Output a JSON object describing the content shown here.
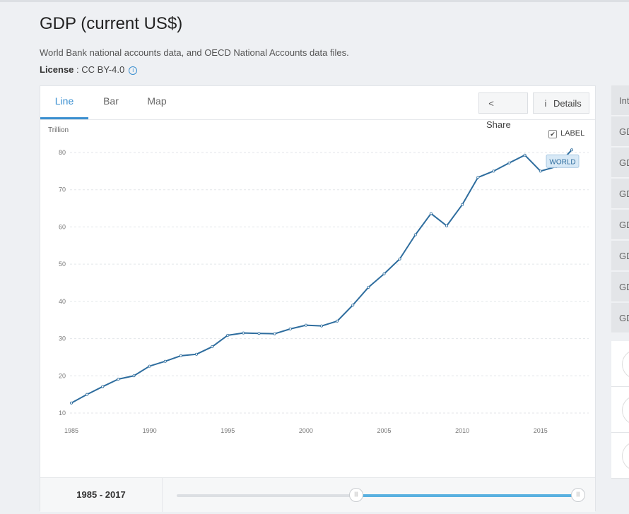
{
  "page": {
    "title": "GDP (current US$)",
    "source": "World Bank national accounts data, and OECD National Accounts data files.",
    "license_label": "License",
    "license_value": " : CC BY-4.0",
    "info_icon": "i"
  },
  "tabs": [
    {
      "label": "Line",
      "active": true
    },
    {
      "label": "Bar",
      "active": false
    },
    {
      "label": "Map",
      "active": false
    }
  ],
  "toolbar": {
    "share_label": "Share",
    "share_icon": "<",
    "details_label": "Details",
    "details_icon": "i"
  },
  "label_toggle": {
    "text": "LABEL",
    "checked": true,
    "mark": "✔"
  },
  "footer": {
    "range_label": "1985 - 2017",
    "handle_glyph": "|||"
  },
  "slider": {
    "min_year": 1960,
    "max_year": 2017,
    "start_year": 1985,
    "end_year": 2017
  },
  "colors": {
    "accent": "#3a8fd0",
    "line": "#2e6d9e",
    "slider_fill": "#59b0e0"
  },
  "sidebar": {
    "rows": [
      "Int",
      "GD",
      "GD",
      "GD",
      "GD",
      "GD",
      "GD",
      "GD"
    ],
    "cards": 3
  },
  "chart_data": {
    "type": "line",
    "ylabel": "Trillion",
    "ylim": [
      10,
      80
    ],
    "yticks": [
      10,
      20,
      30,
      40,
      50,
      60,
      70,
      80
    ],
    "xlim": [
      1985,
      2017
    ],
    "xticks": [
      1985,
      1990,
      1995,
      2000,
      2005,
      2010,
      2015
    ],
    "grid": true,
    "series": [
      {
        "name": "WORLD",
        "x": [
          1985,
          1986,
          1987,
          1988,
          1989,
          1990,
          1991,
          1992,
          1993,
          1994,
          1995,
          1996,
          1997,
          1998,
          1999,
          2000,
          2001,
          2002,
          2003,
          2004,
          2005,
          2006,
          2007,
          2008,
          2009,
          2010,
          2011,
          2012,
          2013,
          2014,
          2015,
          2016,
          2017
        ],
        "values": [
          12.7,
          15.0,
          17.1,
          19.1,
          20.0,
          22.6,
          23.9,
          25.4,
          25.8,
          27.8,
          30.9,
          31.5,
          31.4,
          31.3,
          32.6,
          33.6,
          33.4,
          34.7,
          39.0,
          43.8,
          47.4,
          51.4,
          57.9,
          63.6,
          60.3,
          66.0,
          73.3,
          75.0,
          77.2,
          79.3,
          75.0,
          76.2,
          80.7
        ]
      }
    ]
  }
}
